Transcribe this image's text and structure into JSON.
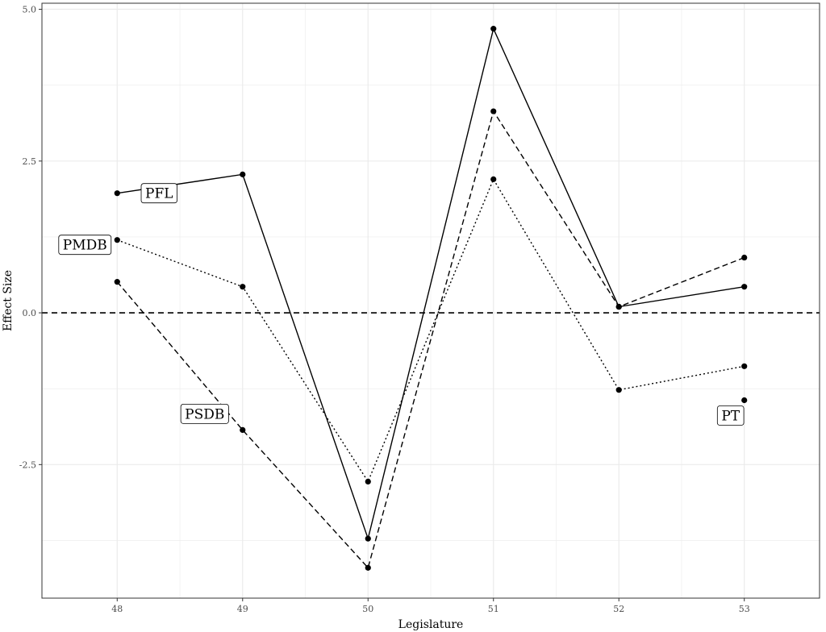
{
  "chart_data": {
    "type": "line",
    "title": "",
    "xlabel": "Legislature",
    "ylabel": "Effect Size",
    "x": [
      48,
      49,
      50,
      51,
      52,
      53
    ],
    "xlim": [
      47.4,
      53.6
    ],
    "ylim": [
      -4.7,
      5.1
    ],
    "x_ticks": [
      "48",
      "49",
      "50",
      "51",
      "52",
      "53"
    ],
    "y_ticks": [
      {
        "value": -2.5,
        "label": "-2.5"
      },
      {
        "value": 0,
        "label": "0.0"
      },
      {
        "value": 2.5,
        "label": "2.5"
      },
      {
        "value": 5,
        "label": "5.0"
      }
    ],
    "reference_line": {
      "y": 0,
      "style": "dashed"
    },
    "grid": true,
    "legend": "none",
    "series": [
      {
        "name": "PFL",
        "line_style": "solid",
        "values": [
          1.97,
          2.28,
          -3.72,
          4.68,
          0.1,
          0.43
        ]
      },
      {
        "name": "PMDB",
        "line_style": "dotted",
        "values": [
          1.2,
          0.43,
          -2.78,
          2.2,
          -1.27,
          -0.88
        ]
      },
      {
        "name": "PSDB",
        "line_style": "dashed",
        "values": [
          0.51,
          -1.93,
          -4.2,
          3.32,
          0.1,
          0.91
        ]
      },
      {
        "name": "PT",
        "line_style": "none",
        "values": [
          null,
          null,
          null,
          null,
          null,
          -1.44
        ]
      }
    ],
    "annotations": [
      {
        "text": "PFL",
        "series": "PFL"
      },
      {
        "text": "PMDB",
        "series": "PMDB"
      },
      {
        "text": "PSDB",
        "series": "PSDB"
      },
      {
        "text": "PT",
        "series": "PT"
      }
    ],
    "colors": {
      "line": "#000000",
      "grid": "#ebebeb",
      "panel_border": "#333333"
    }
  }
}
